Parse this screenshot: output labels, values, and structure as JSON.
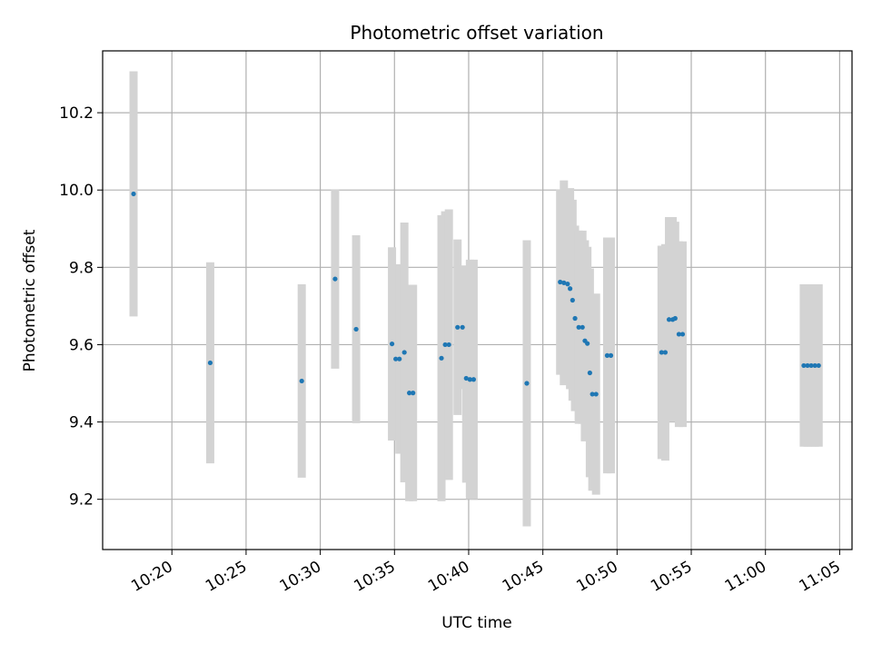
{
  "chart_data": {
    "type": "scatter",
    "title": "Photometric offset variation",
    "xlabel": "UTC time",
    "ylabel": "Photometric offset",
    "xlim": [
      "10:15:20",
      "11:05:50"
    ],
    "ylim": [
      9.07,
      10.36
    ],
    "x_ticks": [
      "10:20",
      "10:25",
      "10:30",
      "10:35",
      "10:40",
      "10:45",
      "10:50",
      "10:55",
      "11:00",
      "11:05"
    ],
    "y_ticks": [
      "9.2",
      "9.4",
      "9.6",
      "9.8",
      "10.0",
      "10.2"
    ],
    "grid": true,
    "series": [
      {
        "marker_color": "#1f77b4",
        "errorbar_color": "#d3d3d3",
        "points": [
          {
            "x": "10:17:25",
            "y": 9.99,
            "err": 0.317
          },
          {
            "x": "10:22:35",
            "y": 9.553,
            "err": 0.26
          },
          {
            "x": "10:28:45",
            "y": 9.506,
            "err": 0.25
          },
          {
            "x": "10:31:00",
            "y": 9.77,
            "err": 0.232
          },
          {
            "x": "10:32:25",
            "y": 9.64,
            "err": 0.243
          },
          {
            "x": "10:34:50",
            "y": 9.602,
            "err": 0.25
          },
          {
            "x": "10:35:05",
            "y": 9.563,
            "err": 0.205
          },
          {
            "x": "10:35:20",
            "y": 9.563,
            "err": 0.245
          },
          {
            "x": "10:35:40",
            "y": 9.58,
            "err": 0.336
          },
          {
            "x": "10:36:00",
            "y": 9.475,
            "err": 0.28
          },
          {
            "x": "10:36:15",
            "y": 9.475,
            "err": 0.28
          },
          {
            "x": "10:38:10",
            "y": 9.565,
            "err": 0.37
          },
          {
            "x": "10:38:25",
            "y": 9.6,
            "err": 0.345
          },
          {
            "x": "10:38:40",
            "y": 9.6,
            "err": 0.35
          },
          {
            "x": "10:39:15",
            "y": 9.645,
            "err": 0.227
          },
          {
            "x": "10:39:35",
            "y": 9.645,
            "err": 0.16
          },
          {
            "x": "10:39:50",
            "y": 9.513,
            "err": 0.27
          },
          {
            "x": "10:40:05",
            "y": 9.51,
            "err": 0.31
          },
          {
            "x": "10:40:20",
            "y": 9.51,
            "err": 0.31
          },
          {
            "x": "10:43:55",
            "y": 9.5,
            "err": 0.37
          },
          {
            "x": "10:46:10",
            "y": 9.762,
            "err": 0.24
          },
          {
            "x": "10:46:25",
            "y": 9.76,
            "err": 0.265
          },
          {
            "x": "10:46:40",
            "y": 9.757,
            "err": 0.24
          },
          {
            "x": "10:46:50",
            "y": 9.745,
            "err": 0.26
          },
          {
            "x": "10:47:00",
            "y": 9.715,
            "err": 0.26
          },
          {
            "x": "10:47:10",
            "y": 9.668,
            "err": 0.24
          },
          {
            "x": "10:47:25",
            "y": 9.645,
            "err": 0.25
          },
          {
            "x": "10:47:40",
            "y": 9.645,
            "err": 0.25
          },
          {
            "x": "10:47:50",
            "y": 9.61,
            "err": 0.26
          },
          {
            "x": "10:48:00",
            "y": 9.603,
            "err": 0.25
          },
          {
            "x": "10:48:10",
            "y": 9.527,
            "err": 0.27
          },
          {
            "x": "10:48:20",
            "y": 9.472,
            "err": 0.25
          },
          {
            "x": "10:48:35",
            "y": 9.472,
            "err": 0.26
          },
          {
            "x": "10:49:20",
            "y": 9.572,
            "err": 0.305
          },
          {
            "x": "10:49:35",
            "y": 9.572,
            "err": 0.305
          },
          {
            "x": "10:53:00",
            "y": 9.58,
            "err": 0.276
          },
          {
            "x": "10:53:15",
            "y": 9.58,
            "err": 0.28
          },
          {
            "x": "10:53:30",
            "y": 9.665,
            "err": 0.265
          },
          {
            "x": "10:53:45",
            "y": 9.665,
            "err": 0.265
          },
          {
            "x": "10:53:55",
            "y": 9.668,
            "err": 0.25
          },
          {
            "x": "10:54:10",
            "y": 9.627,
            "err": 0.24
          },
          {
            "x": "10:54:25",
            "y": 9.627,
            "err": 0.24
          },
          {
            "x": "11:02:35",
            "y": 9.546,
            "err": 0.21
          },
          {
            "x": "11:02:50",
            "y": 9.546,
            "err": 0.21
          },
          {
            "x": "11:03:05",
            "y": 9.546,
            "err": 0.21
          },
          {
            "x": "11:03:20",
            "y": 9.546,
            "err": 0.21
          },
          {
            "x": "11:03:35",
            "y": 9.546,
            "err": 0.21
          }
        ]
      }
    ]
  }
}
